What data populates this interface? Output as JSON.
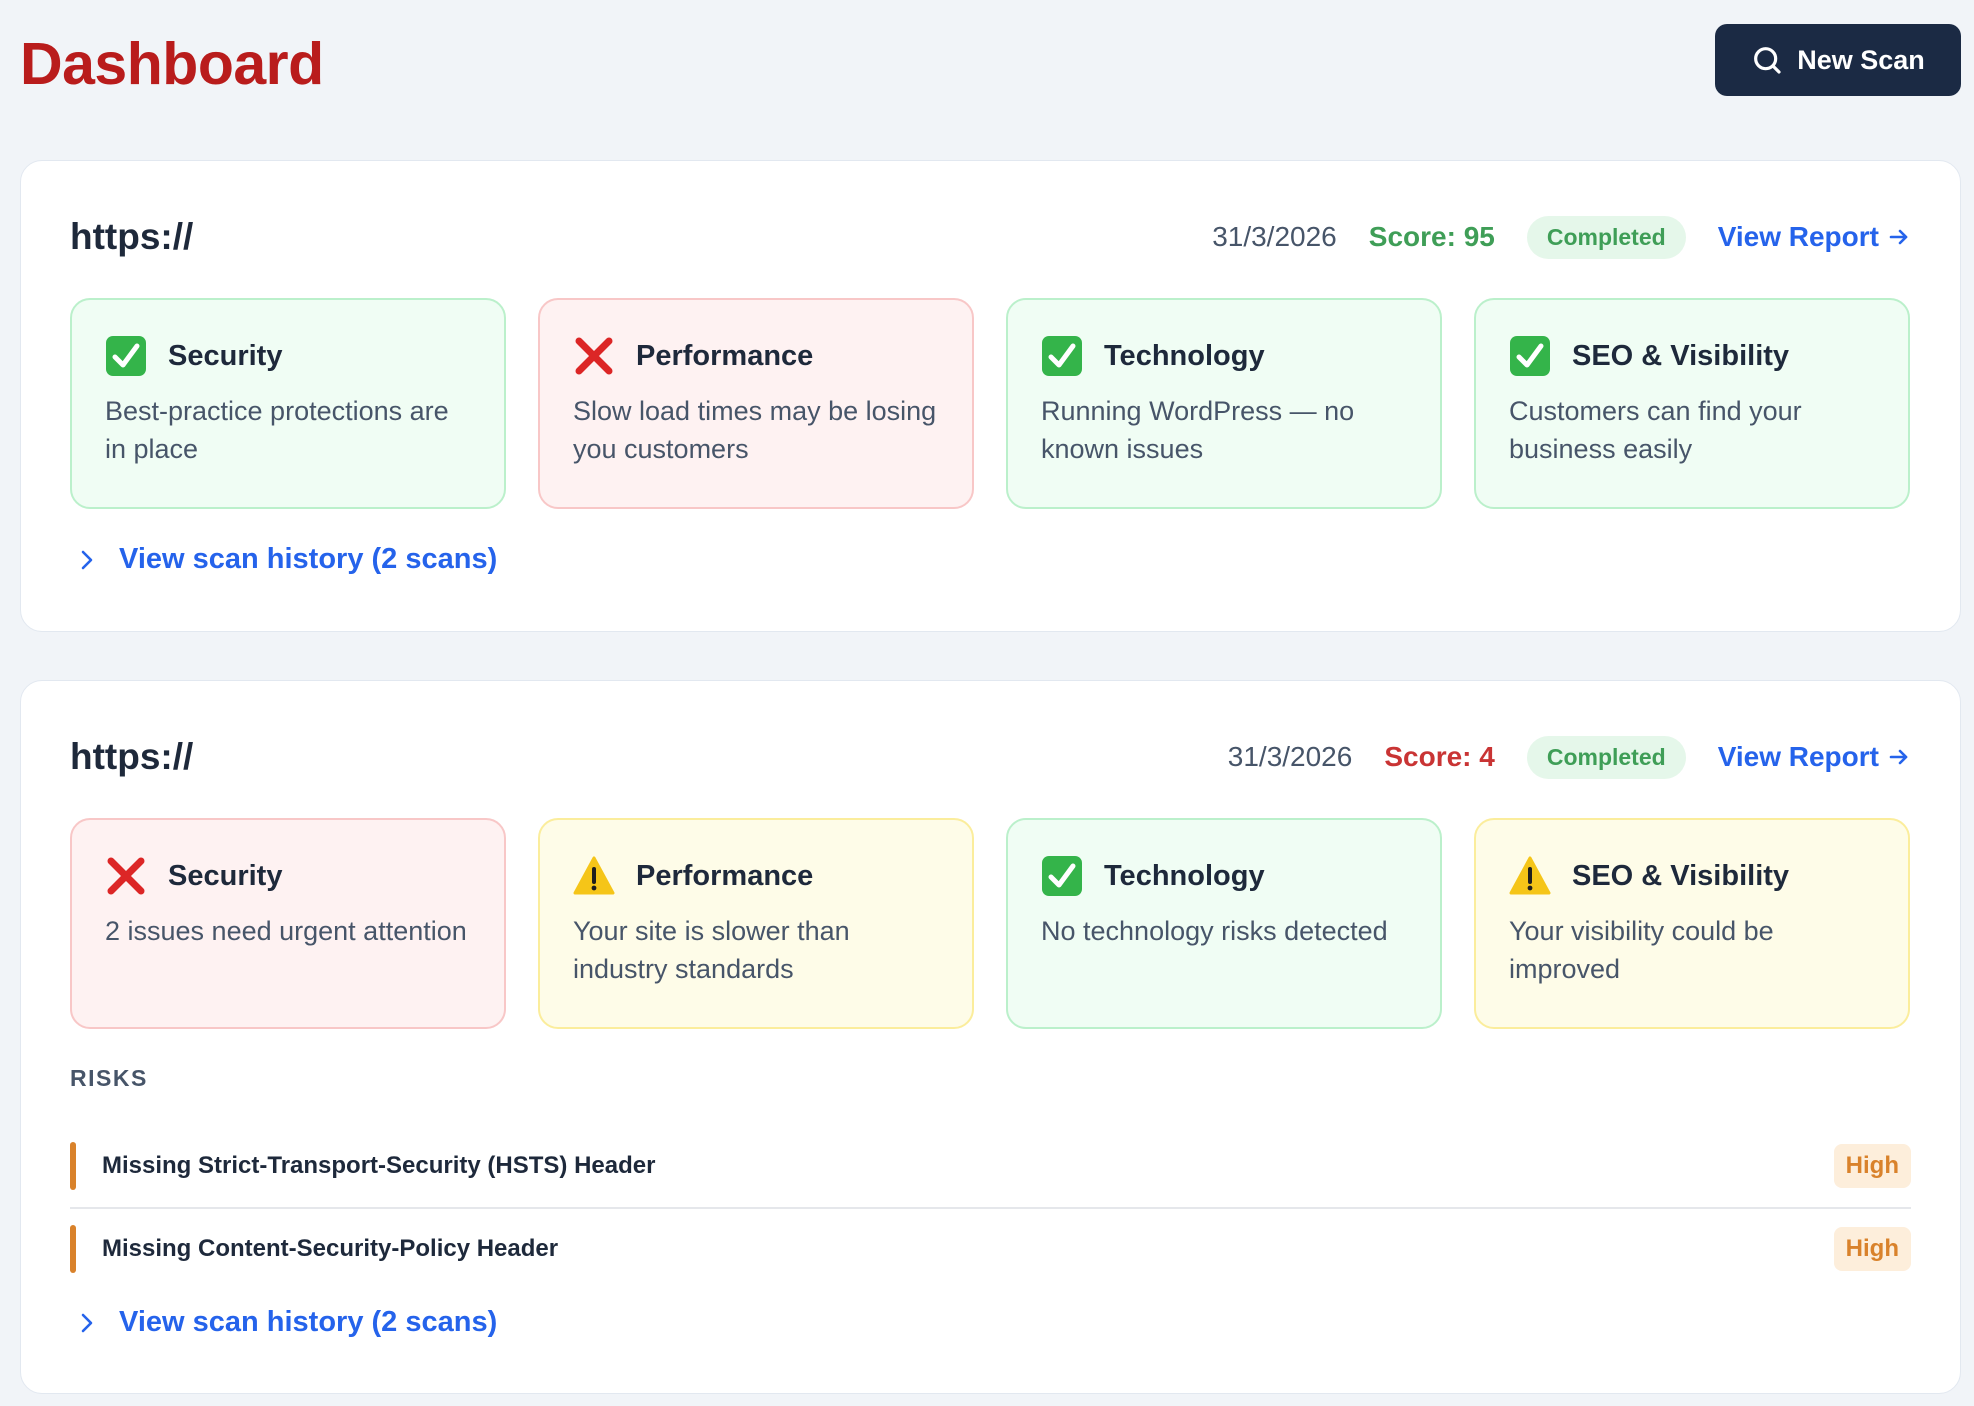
{
  "header": {
    "title": "Dashboard",
    "new_scan_label": "New Scan"
  },
  "colors": {
    "title": "#b91c1c",
    "button": "#1b2a44",
    "good": "#3f9e57",
    "bad": "#c93434",
    "link": "#2563eb",
    "high": "#d9822b"
  },
  "scans": [
    {
      "url": "https://",
      "date": "31/3/2026",
      "score": "Score: 95",
      "status": "Completed",
      "view_report": "View Report",
      "categories": [
        {
          "icon": "check-icon",
          "title": "Security",
          "desc": "Best-practice protections are in place"
        },
        {
          "icon": "cross-icon",
          "title": "Performance",
          "desc": "Slow load times may be losing you customers"
        },
        {
          "icon": "check-icon",
          "title": "Technology",
          "desc": "Running WordPress — no known issues"
        },
        {
          "icon": "check-icon",
          "title": "SEO & Visibility",
          "desc": "Customers can find your business easily"
        }
      ],
      "history": "View scan history (2 scans)"
    },
    {
      "url": "https://",
      "date": "31/3/2026",
      "score": "Score: 4",
      "status": "Completed",
      "view_report": "View Report",
      "categories": [
        {
          "icon": "cross-icon",
          "title": "Security",
          "desc": "2 issues need urgent attention"
        },
        {
          "icon": "warning-icon",
          "title": "Performance",
          "desc": "Your site is slower than industry standards"
        },
        {
          "icon": "check-icon",
          "title": "Technology",
          "desc": "No technology risks detected"
        },
        {
          "icon": "warning-icon",
          "title": "SEO & Visibility",
          "desc": "Your visibility could be improved"
        }
      ],
      "risks_label": "RISKS",
      "risks": [
        {
          "title": "Missing Strict-Transport-Security (HSTS) Header",
          "severity": "High"
        },
        {
          "title": "Missing Content-Security-Policy Header",
          "severity": "High"
        }
      ],
      "history": "View scan history (2 scans)"
    }
  ]
}
